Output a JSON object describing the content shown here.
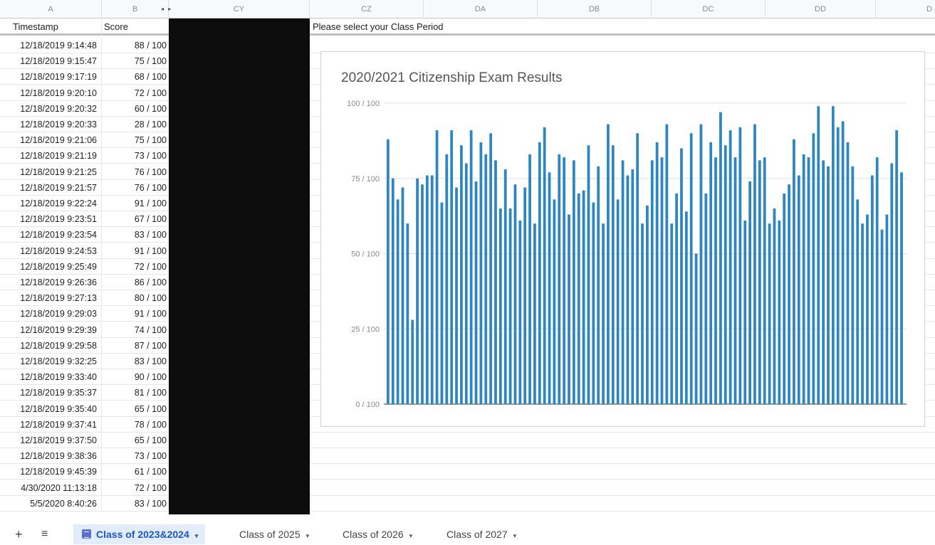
{
  "columns": {
    "a": "A",
    "b": "B",
    "cy": "CY",
    "cz": "CZ",
    "da": "DA",
    "db": "DB",
    "dc": "DC",
    "dd": "DD",
    "de": "D"
  },
  "header_row": {
    "timestamp": "Timestamp",
    "score": "Score",
    "class_period": "Please select your Class Period"
  },
  "rows": [
    {
      "timestamp": "12/18/2019 9:14:48",
      "score": "88 / 100"
    },
    {
      "timestamp": "12/18/2019 9:15:47",
      "score": "75 / 100"
    },
    {
      "timestamp": "12/18/2019 9:17:19",
      "score": "68 / 100"
    },
    {
      "timestamp": "12/18/2019 9:20:10",
      "score": "72 / 100"
    },
    {
      "timestamp": "12/18/2019 9:20:32",
      "score": "60 / 100"
    },
    {
      "timestamp": "12/18/2019 9:20:33",
      "score": "28 / 100"
    },
    {
      "timestamp": "12/18/2019 9:21:06",
      "score": "75 / 100"
    },
    {
      "timestamp": "12/18/2019 9:21:19",
      "score": "73 / 100"
    },
    {
      "timestamp": "12/18/2019 9:21:25",
      "score": "76 / 100"
    },
    {
      "timestamp": "12/18/2019 9:21:57",
      "score": "76 / 100"
    },
    {
      "timestamp": "12/18/2019 9:22:24",
      "score": "91 / 100"
    },
    {
      "timestamp": "12/18/2019 9:23:51",
      "score": "67 / 100"
    },
    {
      "timestamp": "12/18/2019 9:23:54",
      "score": "83 / 100"
    },
    {
      "timestamp": "12/18/2019 9:24:53",
      "score": "91 / 100"
    },
    {
      "timestamp": "12/18/2019 9:25:49",
      "score": "72 / 100"
    },
    {
      "timestamp": "12/18/2019 9:26:36",
      "score": "86 / 100"
    },
    {
      "timestamp": "12/18/2019 9:27:13",
      "score": "80 / 100"
    },
    {
      "timestamp": "12/18/2019 9:29:03",
      "score": "91 / 100"
    },
    {
      "timestamp": "12/18/2019 9:29:39",
      "score": "74 / 100"
    },
    {
      "timestamp": "12/18/2019 9:29:58",
      "score": "87 / 100"
    },
    {
      "timestamp": "12/18/2019 9:32:25",
      "score": "83 / 100"
    },
    {
      "timestamp": "12/18/2019 9:33:40",
      "score": "90 / 100"
    },
    {
      "timestamp": "12/18/2019 9:35:37",
      "score": "81 / 100"
    },
    {
      "timestamp": "12/18/2019 9:35:40",
      "score": "65 / 100"
    },
    {
      "timestamp": "12/18/2019 9:37:41",
      "score": "78 / 100"
    },
    {
      "timestamp": "12/18/2019 9:37:50",
      "score": "65 / 100"
    },
    {
      "timestamp": "12/18/2019 9:38:36",
      "score": "73 / 100"
    },
    {
      "timestamp": "12/18/2019 9:45:39",
      "score": "61 / 100"
    },
    {
      "timestamp": "4/30/2020 11:13:18",
      "score": "72 / 100"
    },
    {
      "timestamp": "5/5/2020 8:40:26",
      "score": "83 / 100"
    }
  ],
  "chart_data": {
    "type": "bar",
    "title": "2020/2021 Citizenship Exam Results",
    "ylim": [
      0,
      100
    ],
    "yticks": [
      0,
      25,
      50,
      75,
      100
    ],
    "ytick_labels": [
      "0 / 100",
      "25 / 100",
      "50 / 100",
      "75 / 100",
      "100 / 100"
    ],
    "grid": true,
    "legend": "none",
    "color": "#2e86c1",
    "values": [
      88,
      75,
      68,
      72,
      60,
      28,
      75,
      73,
      76,
      76,
      91,
      67,
      83,
      91,
      72,
      86,
      80,
      91,
      74,
      87,
      83,
      90,
      81,
      65,
      78,
      65,
      73,
      61,
      72,
      83,
      60,
      87,
      92,
      77,
      68,
      83,
      82,
      63,
      81,
      70,
      71,
      86,
      67,
      79,
      60,
      93,
      86,
      68,
      81,
      76,
      78,
      90,
      60,
      66,
      81,
      87,
      82,
      93,
      60,
      70,
      85,
      64,
      90,
      50,
      93,
      70,
      87,
      82,
      97,
      86,
      91,
      82,
      92,
      61,
      74,
      93,
      81,
      82,
      60,
      65,
      61,
      70,
      73,
      88,
      76,
      83,
      82,
      90,
      99,
      81,
      79,
      99,
      92,
      94,
      87,
      79,
      68,
      60,
      63,
      76,
      82,
      58,
      63,
      80,
      91,
      77
    ]
  },
  "tabs": [
    {
      "label": "Class of 2023&2024"
    },
    {
      "label": "Class of 2025"
    },
    {
      "label": "Class of 2026"
    },
    {
      "label": "Class of 2027"
    }
  ],
  "controls": {
    "add_sheet": "+",
    "all_sheets": "≡",
    "caret": "▾",
    "hidden_cols": "◂ ▸"
  }
}
